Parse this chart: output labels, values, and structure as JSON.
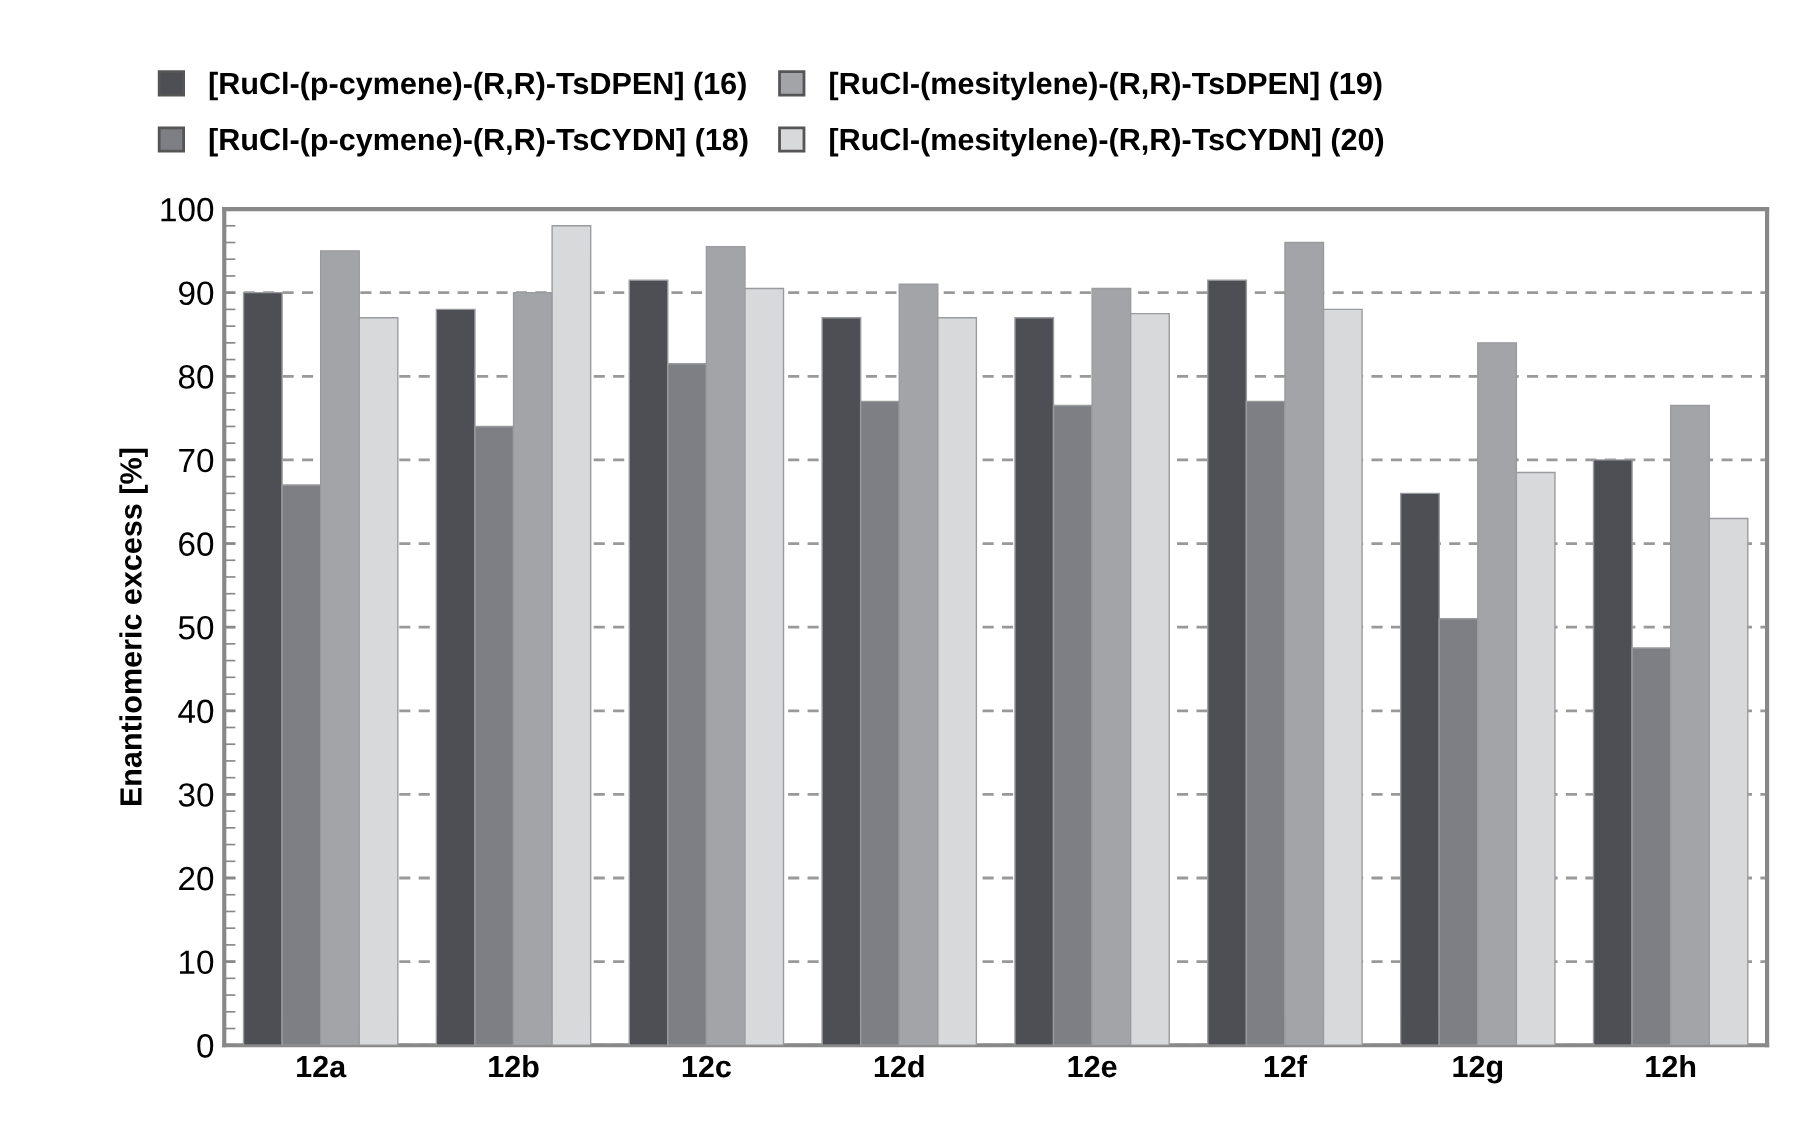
{
  "chart_data": {
    "type": "bar",
    "ylabel": "Enantiomeric excess [%]",
    "categories": [
      "12a",
      "12b",
      "12c",
      "12d",
      "12e",
      "12f",
      "12g",
      "12h"
    ],
    "series": [
      {
        "name": "[RuCl-(p-cymene)-(R,R)-TsDPEN] (16)",
        "color": "#4d4f54",
        "values": [
          90,
          88,
          91.5,
          87,
          87,
          91.5,
          66,
          70
        ]
      },
      {
        "name": "[RuCl-(p-cymene)-(R,R)-TsCYDN] (18)",
        "color": "#7d7f84",
        "values": [
          67,
          74,
          81.5,
          77,
          76.5,
          77,
          51,
          47.5
        ]
      },
      {
        "name": "[RuCl-(mesitylene)-(R,R)-TsDPEN] (19)",
        "color": "#a2a4a8",
        "values": [
          95,
          90,
          95.5,
          91,
          90.5,
          96,
          84,
          76.5
        ]
      },
      {
        "name": "[RuCl-(mesitylene)-(R,R)-TsCYDN] (20)",
        "color": "#d8d9db",
        "values": [
          87,
          98,
          90.5,
          87,
          87.5,
          88,
          68.5,
          63
        ]
      }
    ],
    "ylim": [
      0,
      100
    ],
    "yticks": [
      0,
      10,
      20,
      30,
      40,
      50,
      60,
      70,
      80,
      90,
      100
    ],
    "grid": "y",
    "legend": "top"
  }
}
